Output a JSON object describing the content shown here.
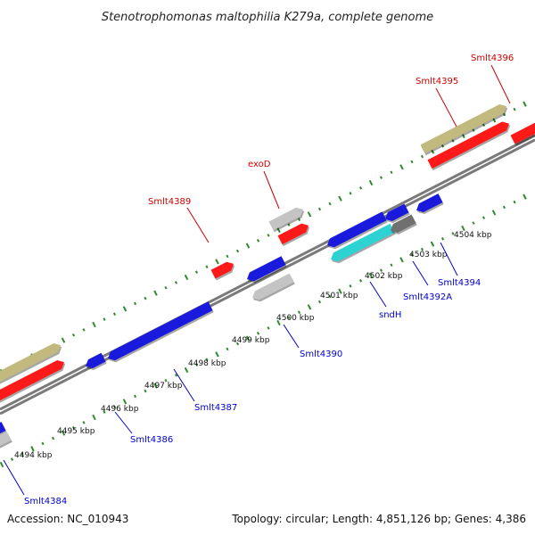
{
  "title": "Stenotrophomonas maltophilia K279a, complete genome",
  "footer": {
    "accession": "Accession: NC_010943",
    "summary": "Topology: circular; Length: 4,851,126 bp; Genes: 4,386"
  },
  "colors": {
    "backbone": "#7a7a7a",
    "tick": "#2f8a2f",
    "forward_label": "#cc0000",
    "reverse_label": "#0000cc",
    "red": "#ff1a1a",
    "blue": "#1a1adc",
    "khaki": "#c2b97e",
    "grey": "#c4c4c4",
    "cyan": "#2dd3d3",
    "darkgrey": "#707070"
  },
  "ruler": [
    {
      "label": "4494 kbp"
    },
    {
      "label": "4495 kbp"
    },
    {
      "label": "4496 kbp"
    },
    {
      "label": "4497 kbp"
    },
    {
      "label": "4498 kbp"
    },
    {
      "label": "4499 kbp"
    },
    {
      "label": "4500 kbp"
    },
    {
      "label": "4501 kbp"
    },
    {
      "label": "4502 kbp"
    },
    {
      "label": "4503 kbp"
    },
    {
      "label": "4504 kbp"
    }
  ],
  "forward_labels": [
    "Smlt4389",
    "exoD",
    "Smlt4395",
    "Smlt4396"
  ],
  "reverse_labels": [
    "Smlt4384",
    "Smlt4386",
    "Smlt4387",
    "Smlt4390",
    "sndH",
    "Smlt4392A",
    "Smlt4394"
  ]
}
